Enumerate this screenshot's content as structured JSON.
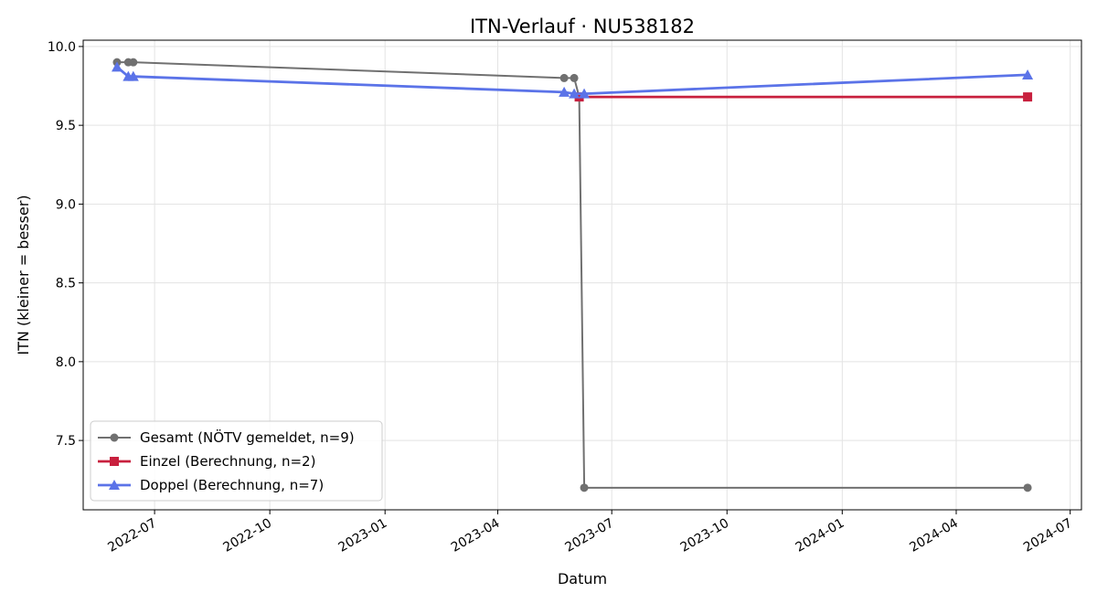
{
  "chart_data": {
    "type": "line",
    "title": "ITN-Verlauf · NU538182",
    "xlabel": "Datum",
    "ylabel": "ITN  (kleiner = besser)",
    "x_type": "date",
    "xlim": [
      "2022-05-05",
      "2024-07-10"
    ],
    "ylim": [
      7.06,
      10.04
    ],
    "x_ticks": [
      "2022-07-01",
      "2022-10-01",
      "2023-01-01",
      "2023-04-01",
      "2023-07-01",
      "2023-10-01",
      "2024-01-01",
      "2024-04-01",
      "2024-07-01"
    ],
    "x_tick_labels": [
      "2022-07",
      "2022-10",
      "2023-01",
      "2023-04",
      "2023-07",
      "2023-10",
      "2024-01",
      "2024-04",
      "2024-07"
    ],
    "y_ticks": [
      7.5,
      8.0,
      8.5,
      9.0,
      9.5,
      10.0
    ],
    "y_tick_labels": [
      "7.5",
      "8.0",
      "8.5",
      "9.0",
      "9.5",
      "10.0"
    ],
    "grid": true,
    "legend_position": "lower-left",
    "series": [
      {
        "name": "Gesamt (NÖTV gemeldet, n=9)",
        "color": "#707070",
        "marker": "circle",
        "points": [
          {
            "x": "2022-06-01",
            "y": 9.9
          },
          {
            "x": "2022-06-10",
            "y": 9.9
          },
          {
            "x": "2022-06-14",
            "y": 9.9
          },
          {
            "x": "2023-05-24",
            "y": 9.8
          },
          {
            "x": "2023-06-01",
            "y": 9.8
          },
          {
            "x": "2023-06-05",
            "y": 9.68
          },
          {
            "x": "2023-06-09",
            "y": 7.2
          },
          {
            "x": "2024-05-28",
            "y": 7.2
          }
        ]
      },
      {
        "name": "Einzel (Berechnung, n=2)",
        "color": "#c8203e",
        "marker": "square",
        "points": [
          {
            "x": "2023-06-05",
            "y": 9.68
          },
          {
            "x": "2024-05-28",
            "y": 9.68
          }
        ]
      },
      {
        "name": "Doppel (Berechnung, n=7)",
        "color": "#5b73e8",
        "marker": "triangle",
        "points": [
          {
            "x": "2022-06-01",
            "y": 9.87
          },
          {
            "x": "2022-06-10",
            "y": 9.81
          },
          {
            "x": "2022-06-14",
            "y": 9.81
          },
          {
            "x": "2023-05-24",
            "y": 9.71
          },
          {
            "x": "2023-06-01",
            "y": 9.7
          },
          {
            "x": "2023-06-09",
            "y": 9.7
          },
          {
            "x": "2024-05-28",
            "y": 9.82
          }
        ]
      }
    ]
  }
}
